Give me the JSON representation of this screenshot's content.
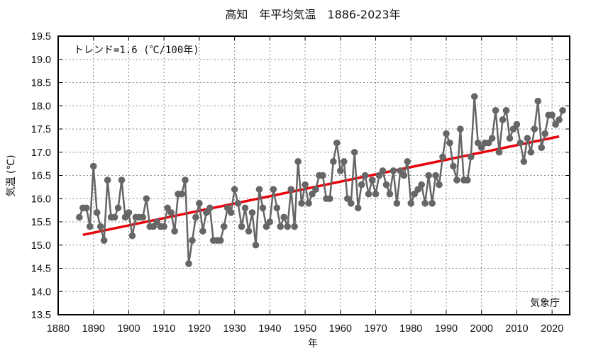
{
  "chart_data": {
    "type": "line",
    "title": "高知　年平均気温　1886-2023年",
    "xlabel": "年",
    "ylabel": "気温 (℃)",
    "xlim": [
      1880,
      2025
    ],
    "ylim": [
      13.5,
      19.5
    ],
    "xticks": [
      1880,
      1890,
      1900,
      1910,
      1920,
      1930,
      1940,
      1950,
      1960,
      1970,
      1980,
      1990,
      2000,
      2010,
      2020
    ],
    "yticks": [
      "13.5",
      "14.0",
      "14.5",
      "15.0",
      "15.5",
      "16.0",
      "16.5",
      "17.0",
      "17.5",
      "18.0",
      "18.5",
      "19.0",
      "19.5"
    ],
    "grid": true,
    "annotation": "トレンド=1.6 (℃/100年)",
    "credit": "気象庁",
    "colors": {
      "series": "#666666",
      "trend": "#e8000b",
      "grid": "#888888",
      "frame": "#000000"
    },
    "series": [
      {
        "name": "年平均気温",
        "x": [
          1886,
          1887,
          1888,
          1889,
          1890,
          1891,
          1892,
          1893,
          1894,
          1895,
          1896,
          1897,
          1898,
          1899,
          1900,
          1901,
          1902,
          1903,
          1904,
          1905,
          1906,
          1907,
          1908,
          1909,
          1910,
          1911,
          1912,
          1913,
          1914,
          1915,
          1916,
          1917,
          1918,
          1919,
          1920,
          1921,
          1922,
          1923,
          1924,
          1925,
          1926,
          1927,
          1928,
          1929,
          1930,
          1931,
          1932,
          1933,
          1934,
          1935,
          1936,
          1937,
          1938,
          1939,
          1940,
          1941,
          1942,
          1943,
          1944,
          1945,
          1946,
          1947,
          1948,
          1949,
          1950,
          1951,
          1952,
          1953,
          1954,
          1955,
          1956,
          1957,
          1958,
          1959,
          1960,
          1961,
          1962,
          1963,
          1964,
          1965,
          1966,
          1967,
          1968,
          1969,
          1970,
          1971,
          1972,
          1973,
          1974,
          1975,
          1976,
          1977,
          1978,
          1979,
          1980,
          1981,
          1982,
          1983,
          1984,
          1985,
          1986,
          1987,
          1988,
          1989,
          1990,
          1991,
          1992,
          1993,
          1994,
          1995,
          1996,
          1997,
          1998,
          1999,
          2000,
          2001,
          2002,
          2003,
          2004,
          2005,
          2006,
          2007,
          2008,
          2009,
          2010,
          2011,
          2012,
          2013,
          2014,
          2015,
          2016,
          2017,
          2018,
          2019,
          2020,
          2021,
          2022,
          2023
        ],
        "values": [
          15.6,
          15.8,
          15.8,
          15.4,
          16.7,
          15.7,
          15.4,
          15.1,
          16.4,
          15.6,
          15.6,
          15.8,
          16.4,
          15.6,
          15.7,
          15.2,
          15.6,
          15.6,
          15.6,
          16.0,
          15.4,
          15.4,
          15.5,
          15.4,
          15.4,
          15.8,
          15.7,
          15.3,
          16.1,
          16.1,
          16.4,
          14.6,
          15.1,
          15.6,
          15.9,
          15.3,
          15.7,
          15.8,
          15.1,
          15.1,
          15.1,
          15.4,
          15.8,
          15.7,
          16.2,
          15.9,
          15.4,
          15.8,
          15.3,
          15.7,
          15.0,
          16.2,
          15.8,
          15.4,
          15.5,
          16.2,
          15.8,
          15.4,
          15.6,
          15.4,
          16.2,
          15.4,
          16.8,
          15.9,
          16.3,
          15.9,
          16.1,
          16.2,
          16.5,
          16.5,
          16.0,
          16.0,
          16.8,
          17.2,
          16.6,
          16.8,
          16.0,
          15.9,
          17.0,
          15.8,
          16.3,
          16.5,
          16.1,
          16.4,
          16.1,
          16.5,
          16.6,
          16.3,
          16.1,
          16.6,
          15.9,
          16.6,
          16.5,
          16.8,
          15.9,
          16.1,
          16.2,
          16.3,
          15.9,
          16.5,
          15.9,
          16.5,
          16.3,
          16.9,
          17.4,
          17.2,
          16.7,
          16.4,
          17.5,
          16.4,
          16.4,
          16.9,
          18.2,
          17.2,
          17.1,
          17.2,
          17.2,
          17.3,
          17.9,
          17.0,
          17.7,
          17.9,
          17.3,
          17.5,
          17.6,
          17.2,
          16.8,
          17.3,
          17.0,
          17.5,
          18.1,
          17.1,
          17.4,
          17.8,
          17.8,
          17.6,
          17.7,
          17.9
        ]
      }
    ],
    "trend": {
      "x": [
        1887,
        2022
      ],
      "y": [
        15.22,
        17.34
      ],
      "rate_per_100yr": 1.6
    }
  }
}
